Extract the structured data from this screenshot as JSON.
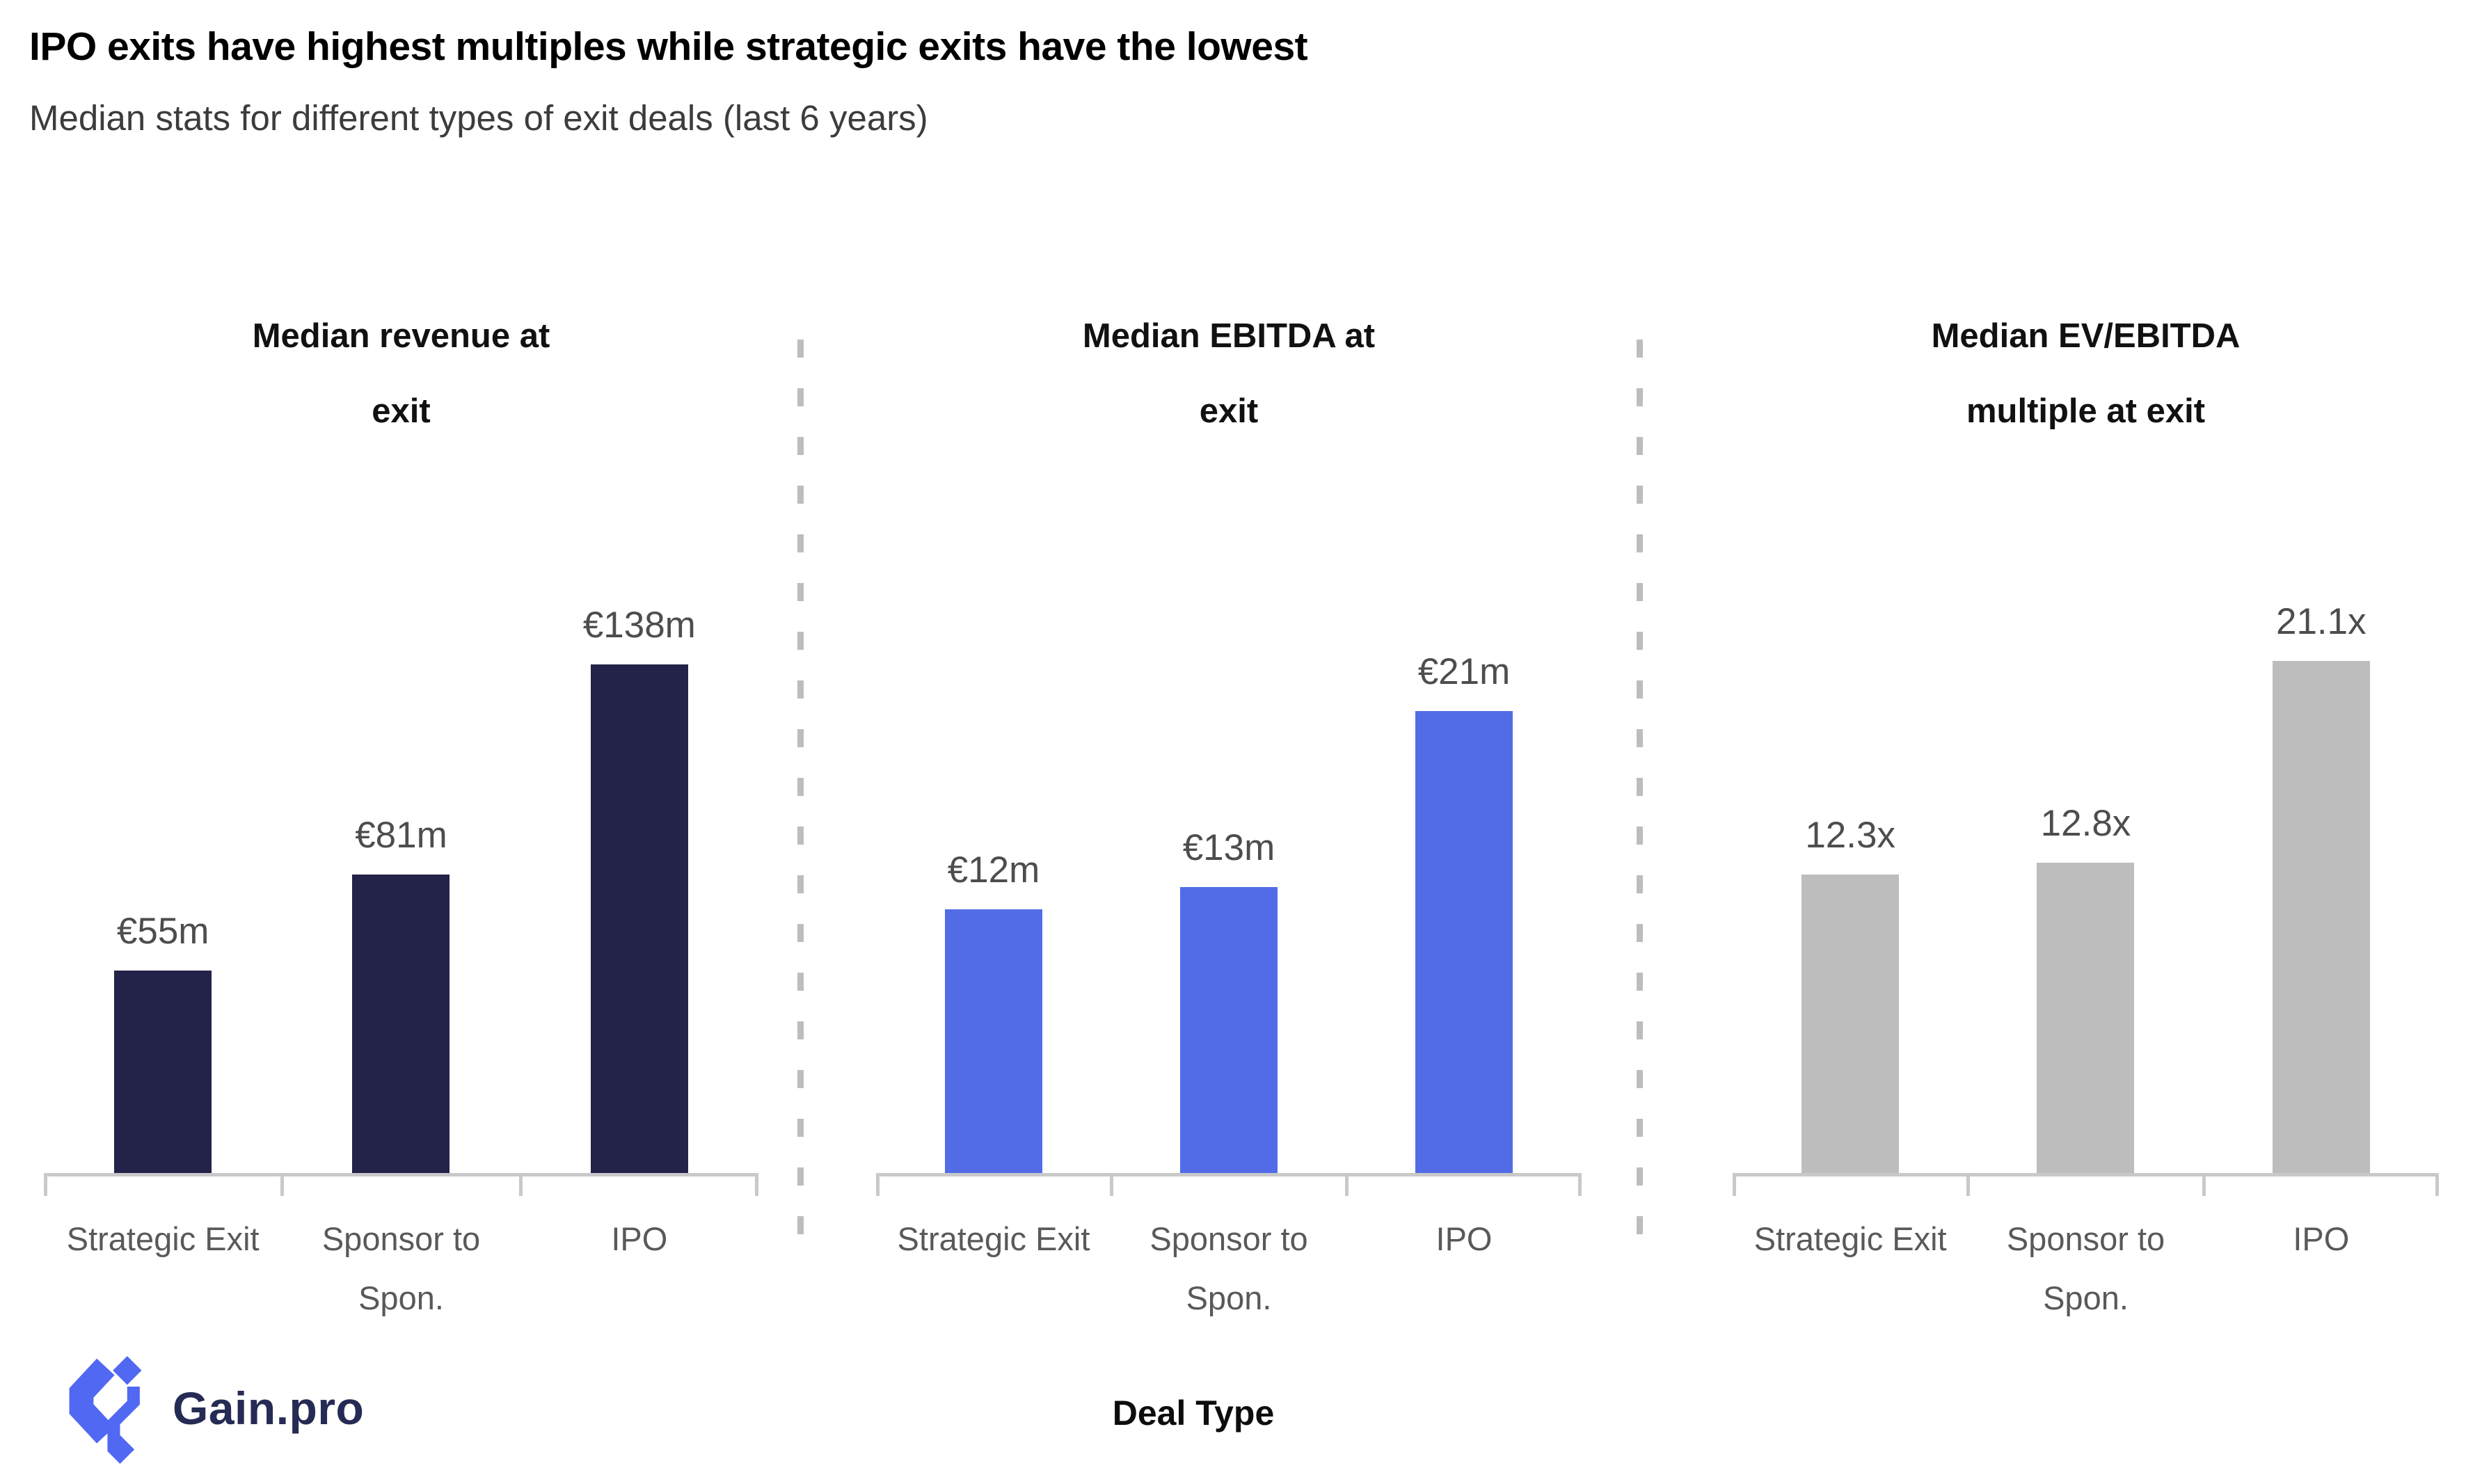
{
  "header": {
    "title": "IPO exits have highest multiples while strategic exits have the lowest",
    "subtitle": "Median stats for different types of exit deals (last 6 years)"
  },
  "footer": {
    "xaxis_label": "Deal Type",
    "logo_text": "Gain.pro"
  },
  "colors": {
    "navy": "#232248",
    "blue": "#526ce8",
    "gray": "#bdbdbd",
    "axis": "#c9c9c9",
    "divider": "#bdbdbd",
    "value_label": "#4d4d4d",
    "category_label": "#595959",
    "logo_blue": "#5168f2",
    "logo_text": "#262b55"
  },
  "chart_data": [
    {
      "type": "bar",
      "title": "Median revenue at\nexit",
      "categories": [
        "Strategic Exit",
        "Sponsor to\nSpon.",
        "IPO"
      ],
      "values": [
        55,
        81,
        138
      ],
      "value_labels": [
        "€55m",
        "€81m",
        "€138m"
      ],
      "bar_color": "#232248",
      "xlabel": "Deal Type",
      "ylabel": "",
      "ylim": [
        0,
        145
      ],
      "grid": false,
      "legend": "none"
    },
    {
      "type": "bar",
      "title": "Median EBITDA at\nexit",
      "categories": [
        "Strategic Exit",
        "Sponsor to\nSpon.",
        "IPO"
      ],
      "values": [
        12,
        13,
        21
      ],
      "value_labels": [
        "€12m",
        "€13m",
        "€21m"
      ],
      "bar_color": "#526ce8",
      "xlabel": "Deal Type",
      "ylabel": "",
      "ylim": [
        0,
        23
      ],
      "grid": false,
      "legend": "none"
    },
    {
      "type": "bar",
      "title": "Median EV/EBITDA\nmultiple at exit",
      "categories": [
        "Strategic Exit",
        "Sponsor to\nSpon.",
        "IPO"
      ],
      "values": [
        12.3,
        12.8,
        21.1
      ],
      "value_labels": [
        "12.3x",
        "12.8x",
        "21.1x"
      ],
      "bar_color": "#bdbdbd",
      "xlabel": "Deal Type",
      "ylabel": "",
      "ylim": [
        0,
        22
      ],
      "grid": false,
      "legend": "none"
    }
  ]
}
